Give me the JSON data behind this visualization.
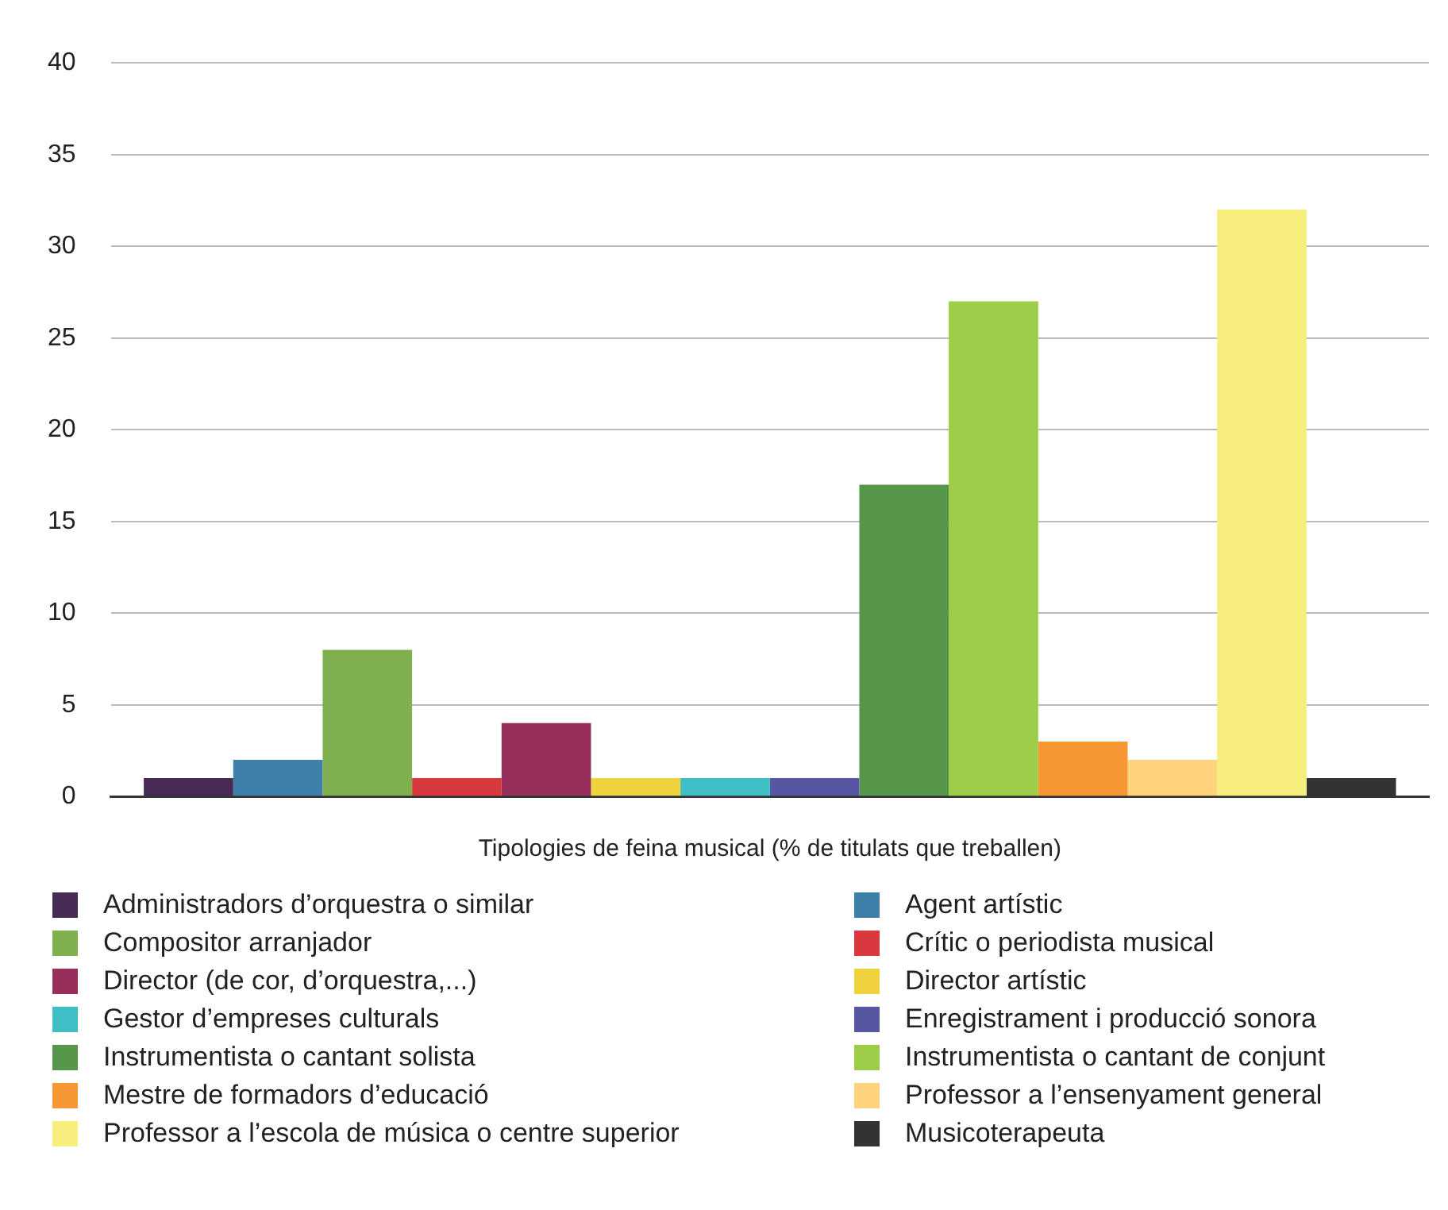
{
  "chart_data": {
    "type": "bar",
    "xlabel": "Tipologies de feina musical (% de titulats que treballen)",
    "categories": [
      null
    ],
    "series": [
      {
        "name": "Administradors d’orquestra o similar",
        "color": "#472b54",
        "values": [
          1
        ]
      },
      {
        "name": "Agent artístic",
        "color": "#3e80a8",
        "values": [
          2
        ]
      },
      {
        "name": "Compositor arranjador",
        "color": "#80b04e",
        "values": [
          8
        ]
      },
      {
        "name": "Crític o periodista musical",
        "color": "#d8383e",
        "values": [
          1
        ]
      },
      {
        "name": "Director (de cor, d’orquestra,...)",
        "color": "#962f5a",
        "values": [
          4
        ]
      },
      {
        "name": "Director artístic",
        "color": "#f0d23e",
        "values": [
          1
        ]
      },
      {
        "name": "Gestor d’empreses culturals",
        "color": "#3fbec6",
        "values": [
          1
        ]
      },
      {
        "name": "Enregistrament i producció sonora",
        "color": "#5656a2",
        "values": [
          1
        ]
      },
      {
        "name": "Instrumentista o cantant solista",
        "color": "#56964a",
        "values": [
          17
        ]
      },
      {
        "name": "Instrumentista o cantant de conjunt",
        "color": "#9ecd48",
        "values": [
          27
        ]
      },
      {
        "name": "Mestre de formadors d’educació",
        "color": "#f79734",
        "values": [
          3
        ]
      },
      {
        "name": "Professor a l’ensenyament general",
        "color": "#fed37c",
        "values": [
          2
        ]
      },
      {
        "name": "Professor a l’escola de música o centre superior",
        "color": "#f6ef7c",
        "values": [
          32
        ]
      },
      {
        "name": "Musicoterapeuta",
        "color": "#333333",
        "values": [
          1
        ]
      }
    ],
    "ylim": [
      0,
      40
    ],
    "yticks": [
      0,
      5,
      10,
      15,
      20,
      25,
      30,
      35,
      40
    ],
    "grid": "y",
    "legend": "bottom"
  }
}
